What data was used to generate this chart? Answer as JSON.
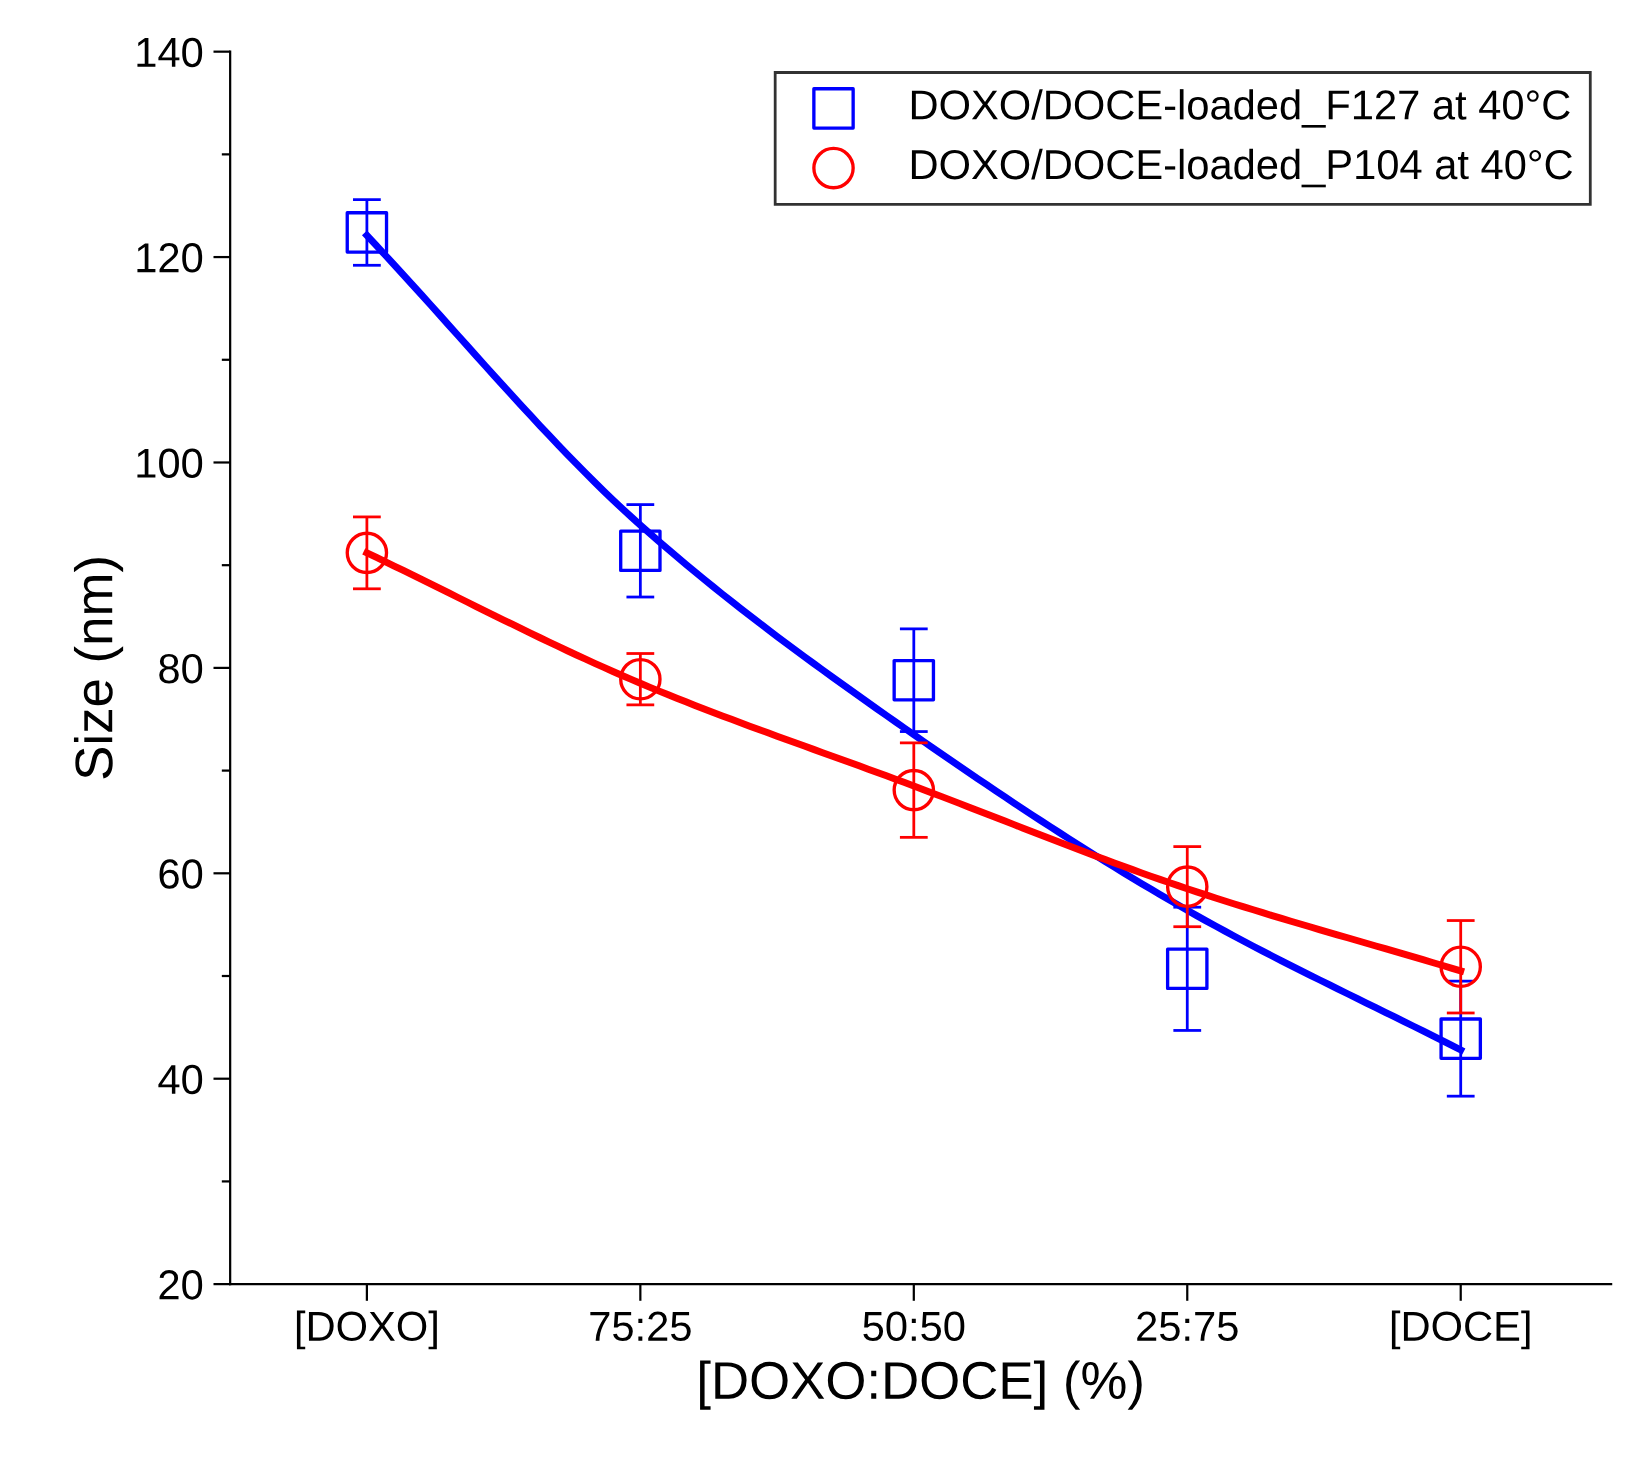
{
  "chart_data": {
    "type": "scatter",
    "xlabel": "[DOXO:DOCE] (%)",
    "ylabel": "Size (nm)",
    "categories": [
      "[DOXO]",
      "75:25",
      "50:50",
      "25:75",
      "[DOCE]"
    ],
    "ylim": [
      20,
      140
    ],
    "yticks": [
      20,
      {
        "value": 30,
        "label": null
      },
      40,
      {
        "value": 50,
        "label": null
      },
      60,
      {
        "value": 70,
        "label": null
      },
      80,
      {
        "value": 90,
        "label": null
      },
      100,
      {
        "value": 110,
        "label": null
      },
      120,
      {
        "value": 130,
        "label": null
      },
      140
    ],
    "legend": "top right",
    "grid": false,
    "series": [
      {
        "name": "DOXO/DOCE-loaded_F127 at 40°C",
        "color": "#0000ff",
        "marker": "square",
        "values": [
          122.4,
          91.4,
          78.8,
          50.7,
          43.9
        ],
        "errors": [
          3.2,
          4.5,
          5.0,
          6.0,
          5.6
        ]
      },
      {
        "name": "DOXO/DOCE-loaded_P104 at 40°C",
        "color": "#ff0000",
        "marker": "circle",
        "values": [
          91.2,
          78.9,
          68.1,
          58.7,
          50.9
        ],
        "errors": [
          3.5,
          2.5,
          4.6,
          3.9,
          4.5
        ]
      },
      {
        "type": "line",
        "color": "#0000ff",
        "line_style": "solid",
        "marker": "none",
        "values": [
          122.1,
          93.9,
          73.5,
          56.4,
          42.8
        ]
      },
      {
        "type": "line",
        "color": "#ff0000",
        "line_style": "solid",
        "marker": "none",
        "values": [
          91.2,
          78.5,
          68.5,
          58.5,
          50.5
        ]
      }
    ]
  }
}
